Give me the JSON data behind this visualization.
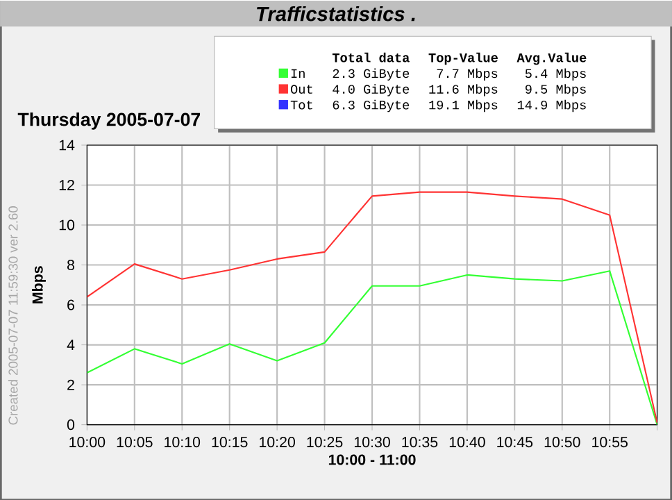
{
  "chart_data": {
    "type": "line",
    "title": "Trafficstatistics .",
    "subtitle": "Thursday 2005-07-07",
    "xlabel": "10:00 - 11:00",
    "ylabel": "Mbps",
    "categories": [
      "10:00",
      "10:05",
      "10:10",
      "10:15",
      "10:20",
      "10:25",
      "10:30",
      "10:35",
      "10:40",
      "10:45",
      "10:50",
      "10:55",
      null
    ],
    "series": [
      {
        "name": "In",
        "color": "#33ff33",
        "values": [
          2.6,
          3.8,
          3.05,
          4.05,
          3.2,
          4.1,
          6.95,
          6.95,
          7.5,
          7.3,
          7.2,
          7.7,
          0
        ]
      },
      {
        "name": "Out",
        "color": "#ff3333",
        "values": [
          6.4,
          8.05,
          7.3,
          7.75,
          8.3,
          8.65,
          11.45,
          11.65,
          11.65,
          11.45,
          11.3,
          10.5,
          0.1
        ]
      },
      {
        "name": "Tot",
        "color": "#3333ff",
        "values": [
          null,
          null,
          null,
          null,
          null,
          null,
          null,
          null,
          null,
          null,
          null,
          null,
          null
        ]
      }
    ],
    "ylim": [
      0,
      14
    ],
    "yticks": [
      0,
      2,
      4,
      6,
      8,
      10,
      12,
      14
    ],
    "grid": true,
    "legend": "top",
    "marker": "none",
    "line_style": "solid",
    "annotations": [
      "Total data",
      "Top-Value",
      "Avg.Value",
      "2.3 GiByte",
      "7.7 Mbps",
      "5.4 Mbps",
      "4.0 GiByte",
      "11.6 Mbps",
      "9.5 Mbps",
      "6.3 GiByte",
      "19.1 Mbps",
      "14.9 Mbps",
      "Created 2005-07-07 11:59:30  ver 2.60"
    ]
  }
}
